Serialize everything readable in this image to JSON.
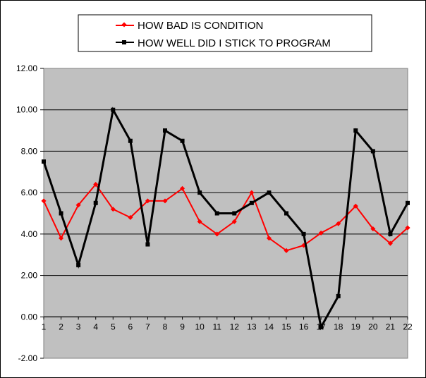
{
  "chart_data": {
    "type": "line",
    "title": "",
    "xlabel": "",
    "ylabel": "",
    "x": [
      1,
      2,
      3,
      4,
      5,
      6,
      7,
      8,
      9,
      10,
      11,
      12,
      13,
      14,
      15,
      16,
      17,
      18,
      19,
      20,
      21,
      22
    ],
    "ylim": [
      -2,
      12
    ],
    "yticks": [
      "12.00",
      "10.00",
      "8.00",
      "6.00",
      "4.00",
      "2.00",
      "0.00",
      "-2.00"
    ],
    "xticks": [
      "1",
      "2",
      "3",
      "4",
      "5",
      "6",
      "7",
      "8",
      "9",
      "10",
      "11",
      "12",
      "13",
      "14",
      "15",
      "16",
      "17",
      "18",
      "19",
      "20",
      "21",
      "22"
    ],
    "grid": true,
    "legend_position": "top",
    "plot_background": "#C0C0C0",
    "series": [
      {
        "name": "HOW BAD IS CONDITION",
        "color": "#FF0000",
        "marker": "diamond",
        "values": [
          5.6,
          3.8,
          5.4,
          6.4,
          5.2,
          4.8,
          5.6,
          5.6,
          6.2,
          4.6,
          4.0,
          4.6,
          6.0,
          3.8,
          3.2,
          3.45,
          4.05,
          4.5,
          5.35,
          4.25,
          3.55,
          4.3
        ]
      },
      {
        "name": "HOW WELL DID I STICK TO PROGRAM",
        "color": "#000000",
        "marker": "square",
        "values": [
          7.5,
          5.0,
          2.5,
          5.5,
          10.0,
          8.5,
          3.5,
          9.0,
          8.5,
          6.0,
          5.0,
          5.0,
          5.5,
          6.0,
          5.0,
          4.0,
          -0.5,
          1.0,
          9.0,
          8.0,
          4.0,
          5.5
        ]
      }
    ]
  }
}
